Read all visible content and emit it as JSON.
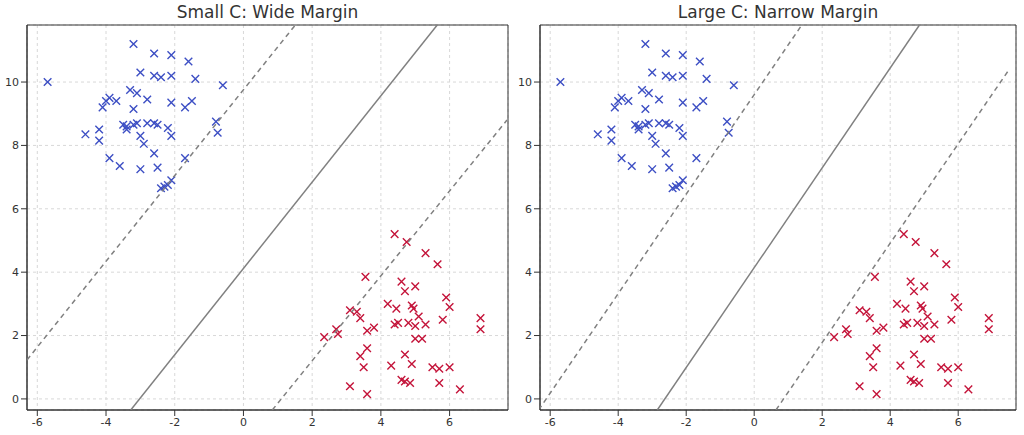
{
  "chart_data": [
    {
      "type": "scatter",
      "title": "Small C: Wide Margin",
      "xlim": [
        -6.3,
        7.7
      ],
      "ylim": [
        -0.35,
        11.8
      ],
      "xticks": [
        -6,
        -4,
        -2,
        0,
        2,
        4,
        6
      ],
      "yticks": [
        0,
        2,
        4,
        6,
        8,
        10
      ],
      "grid": true,
      "series": [
        {
          "type": "scatter",
          "color": "#3d4fc4",
          "marker": "x",
          "x": [
            -5.7,
            -3.2,
            -2.6,
            -2.1,
            -1.6,
            -3.0,
            -2.6,
            -2.4,
            -2.1,
            -1.4,
            -0.6,
            -3.3,
            -3.1,
            -3.9,
            -4.0,
            -3.7,
            -4.1,
            -2.8,
            -2.1,
            -1.5,
            -1.7,
            -3.2,
            -3.1,
            -3.5,
            -3.4,
            -3.2,
            -2.8,
            -2.6,
            -2.5,
            -2.2,
            -4.2,
            -4.6,
            -4.2,
            -3.4,
            -3.0,
            -2.1,
            -0.8,
            -0.75,
            -2.9,
            -3.6,
            -3.9,
            -2.6,
            -1.7,
            -2.5,
            -3.0,
            -2.1,
            -2.2,
            -2.3,
            -2.4
          ],
          "values": [
            10.0,
            11.2,
            10.9,
            10.85,
            10.65,
            10.3,
            10.2,
            10.15,
            10.2,
            10.1,
            9.9,
            9.75,
            9.65,
            9.5,
            9.4,
            9.4,
            9.2,
            9.45,
            9.35,
            9.4,
            9.2,
            9.15,
            8.7,
            8.65,
            8.6,
            8.65,
            8.7,
            8.7,
            8.65,
            8.55,
            8.5,
            8.35,
            8.15,
            8.5,
            8.3,
            8.3,
            8.75,
            8.4,
            8.05,
            7.35,
            7.6,
            7.75,
            7.6,
            7.3,
            7.25,
            6.9,
            6.75,
            6.7,
            6.65
          ]
        },
        {
          "type": "scatter",
          "color": "#c4143a",
          "marker": "x",
          "x": [
            4.4,
            4.75,
            5.3,
            5.65,
            3.55,
            4.6,
            5.0,
            4.7,
            4.2,
            5.9,
            6.0,
            3.1,
            3.3,
            3.4,
            4.45,
            4.9,
            4.95,
            5.1,
            5.0,
            5.3,
            4.4,
            4.5,
            4.8,
            6.9,
            6.9,
            5.8,
            2.7,
            2.75,
            2.35,
            3.8,
            3.6,
            3.6,
            3.4,
            5.0,
            5.2,
            4.7,
            4.9,
            4.3,
            3.5,
            5.5,
            5.7,
            6.0,
            3.1,
            4.6,
            4.7,
            4.85,
            5.7,
            6.3,
            3.6
          ],
          "values": [
            5.2,
            4.95,
            4.6,
            4.25,
            3.85,
            3.7,
            3.55,
            3.4,
            3.0,
            3.2,
            2.9,
            2.8,
            2.75,
            2.55,
            2.85,
            2.95,
            2.85,
            2.6,
            2.3,
            2.35,
            2.35,
            2.4,
            2.4,
            2.55,
            2.2,
            2.5,
            2.2,
            2.05,
            1.95,
            2.25,
            2.15,
            1.6,
            1.35,
            1.9,
            1.9,
            1.4,
            1.1,
            1.05,
            1.0,
            1.0,
            0.95,
            1.0,
            0.4,
            0.6,
            0.55,
            0.5,
            0.5,
            0.3,
            0.15
          ]
        },
        {
          "type": "line",
          "color": "#808080",
          "line_style": "solid",
          "x": [
            -3.28,
            5.64
          ],
          "values": [
            -0.35,
            11.8
          ]
        },
        {
          "type": "line",
          "color": "#808080",
          "line_style": "dashed",
          "x": [
            -6.3,
            1.51
          ],
          "values": [
            1.23,
            11.8
          ]
        },
        {
          "type": "line",
          "color": "#808080",
          "line_style": "dashed",
          "x": [
            0.84,
            7.67
          ],
          "values": [
            -0.35,
            8.8
          ]
        }
      ]
    },
    {
      "type": "scatter",
      "title": "Large C: Narrow Margin",
      "xlim": [
        -6.3,
        7.7
      ],
      "ylim": [
        -0.35,
        11.8
      ],
      "xticks": [
        -6,
        -4,
        -2,
        0,
        2,
        4,
        6
      ],
      "yticks": [
        0,
        2,
        4,
        6,
        8,
        10
      ],
      "grid": true,
      "series": [
        {
          "type": "scatter",
          "color": "#3d4fc4",
          "marker": "x",
          "x": [
            -5.7,
            -3.2,
            -2.6,
            -2.1,
            -1.6,
            -3.0,
            -2.6,
            -2.4,
            -2.1,
            -1.4,
            -0.6,
            -3.3,
            -3.1,
            -3.9,
            -4.0,
            -3.7,
            -4.1,
            -2.8,
            -2.1,
            -1.5,
            -1.7,
            -3.2,
            -3.1,
            -3.5,
            -3.4,
            -3.2,
            -2.8,
            -2.6,
            -2.5,
            -2.2,
            -4.2,
            -4.6,
            -4.2,
            -3.4,
            -3.0,
            -2.1,
            -0.8,
            -0.75,
            -2.9,
            -3.6,
            -3.9,
            -2.6,
            -1.7,
            -2.5,
            -3.0,
            -2.1,
            -2.2,
            -2.3,
            -2.4
          ],
          "values": [
            10.0,
            11.2,
            10.9,
            10.85,
            10.65,
            10.3,
            10.2,
            10.15,
            10.2,
            10.1,
            9.9,
            9.75,
            9.65,
            9.5,
            9.4,
            9.4,
            9.2,
            9.45,
            9.35,
            9.4,
            9.2,
            9.15,
            8.7,
            8.65,
            8.6,
            8.65,
            8.7,
            8.7,
            8.65,
            8.55,
            8.5,
            8.35,
            8.15,
            8.5,
            8.3,
            8.3,
            8.75,
            8.4,
            8.05,
            7.35,
            7.6,
            7.75,
            7.6,
            7.3,
            7.25,
            6.9,
            6.75,
            6.7,
            6.65
          ]
        },
        {
          "type": "scatter",
          "color": "#c4143a",
          "marker": "x",
          "x": [
            4.4,
            4.75,
            5.3,
            5.65,
            3.55,
            4.6,
            5.0,
            4.7,
            4.2,
            5.9,
            6.0,
            3.1,
            3.3,
            3.4,
            4.45,
            4.9,
            4.95,
            5.1,
            5.0,
            5.3,
            4.4,
            4.5,
            4.8,
            6.9,
            6.9,
            5.8,
            2.7,
            2.75,
            2.35,
            3.8,
            3.6,
            3.6,
            3.4,
            5.0,
            5.2,
            4.7,
            4.9,
            4.3,
            3.5,
            5.5,
            5.7,
            6.0,
            3.1,
            4.6,
            4.7,
            4.85,
            5.7,
            6.3,
            3.6
          ],
          "values": [
            5.2,
            4.95,
            4.6,
            4.25,
            3.85,
            3.7,
            3.55,
            3.4,
            3.0,
            3.2,
            2.9,
            2.8,
            2.75,
            2.55,
            2.85,
            2.95,
            2.85,
            2.6,
            2.3,
            2.35,
            2.35,
            2.4,
            2.4,
            2.55,
            2.2,
            2.5,
            2.2,
            2.05,
            1.95,
            2.25,
            2.15,
            1.6,
            1.35,
            1.9,
            1.9,
            1.4,
            1.1,
            1.05,
            1.0,
            1.0,
            0.95,
            1.0,
            0.4,
            0.6,
            0.55,
            0.5,
            0.5,
            0.3,
            0.15
          ]
        },
        {
          "type": "line",
          "color": "#808080",
          "line_style": "solid",
          "x": [
            -2.85,
            4.86
          ],
          "values": [
            -0.35,
            11.8
          ]
        },
        {
          "type": "line",
          "color": "#808080",
          "line_style": "dashed",
          "x": [
            -6.34,
            1.4
          ],
          "values": [
            -0.35,
            11.8
          ]
        },
        {
          "type": "line",
          "color": "#808080",
          "line_style": "dashed",
          "x": [
            0.64,
            7.5
          ],
          "values": [
            -0.35,
            10.4
          ]
        }
      ]
    }
  ]
}
